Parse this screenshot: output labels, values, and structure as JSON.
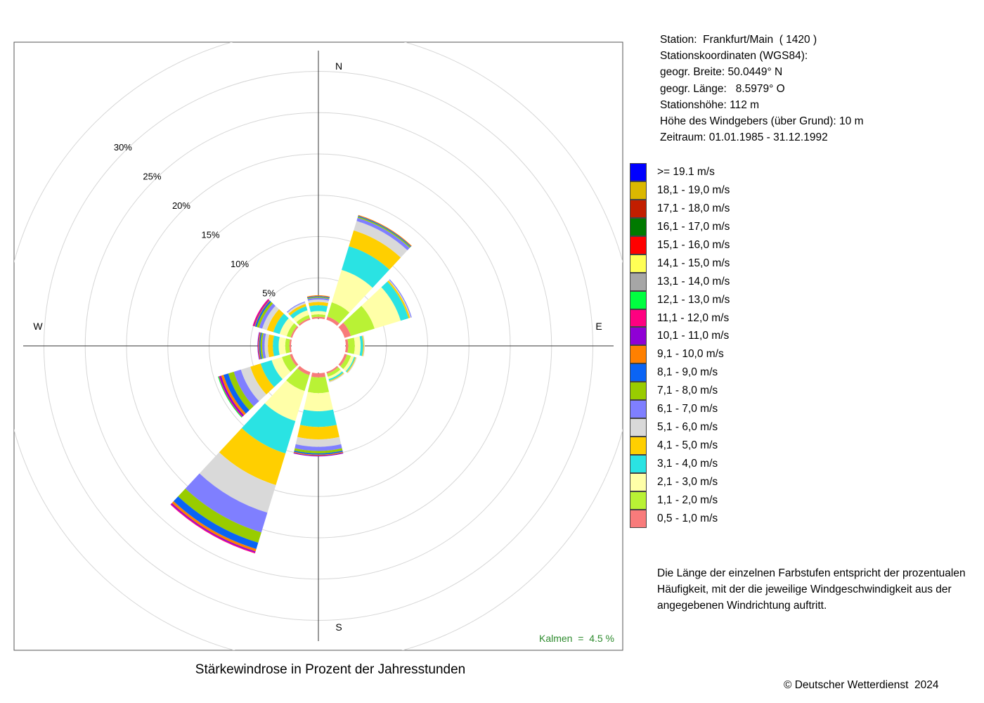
{
  "station_info": [
    "Station:  Frankfurt/Main  ( 1420 )",
    "Stationskoordinaten (WGS84):",
    "geogr. Breite: 50.0449° N",
    "geogr. Länge:   8.5979° O",
    "Stationshöhe: 112 m",
    "Höhe des Windgebers (über Grund): 10 m",
    "Zeitraum: 01.01.1985 - 31.12.1992"
  ],
  "note_lines": [
    "Die Länge der einzelnen Farbstufen entspricht der prozentualen",
    "Häufigkeit, mit der die jeweilige Windgeschwindigkeit aus der",
    "angegebenen Windrichtung auftritt."
  ],
  "copyright": "© Deutscher Wetterdienst  2024",
  "chart_data": {
    "type": "windrose",
    "title": "Stärkewindrose in Prozent der Jahresstunden",
    "compass": {
      "N": "N",
      "E": "E",
      "S": "S",
      "W": "W"
    },
    "radial_ticks": [
      "5%",
      "10%",
      "15%",
      "20%",
      "25%",
      "30%"
    ],
    "radial_values": [
      5,
      10,
      15,
      20,
      25,
      30
    ],
    "calm_label": "Kalmen  =  4.5 %",
    "calm_percent": 4.5,
    "grid": true,
    "legend_position": "right",
    "speed_classes": [
      {
        "label": "0,5 - 1,0 m/s",
        "color": "#f87b7b"
      },
      {
        "label": "1,1 - 2,0 m/s",
        "color": "#b9f235"
      },
      {
        "label": "2,1 - 3,0 m/s",
        "color": "#ffffa8"
      },
      {
        "label": "3,1 - 4,0 m/s",
        "color": "#2ae3e3"
      },
      {
        "label": "4,1 - 5,0 m/s",
        "color": "#ffcf00"
      },
      {
        "label": "5,1 - 6,0 m/s",
        "color": "#d9d9d9"
      },
      {
        "label": "6,1 - 7,0 m/s",
        "color": "#7f7fff"
      },
      {
        "label": "7,1 - 8,0 m/s",
        "color": "#99cc00"
      },
      {
        "label": "8,1 - 9,0 m/s",
        "color": "#0a64f5"
      },
      {
        "label": "9,1 - 10,0 m/s",
        "color": "#ff8000"
      },
      {
        "label": "10,1 - 11,0 m/s",
        "color": "#8f00d6"
      },
      {
        "label": "11,1 - 12,0 m/s",
        "color": "#ff0080"
      },
      {
        "label": "12,1 - 13,0 m/s",
        "color": "#00ff40"
      },
      {
        "label": "13,1 - 14,0 m/s",
        "color": "#a6a6a6"
      },
      {
        "label": "14,1 - 15,0 m/s",
        "color": "#ffff55"
      },
      {
        "label": "15,1 - 16,0 m/s",
        "color": "#ff0000"
      },
      {
        "label": "16,1 - 17,0 m/s",
        "color": "#007a00"
      },
      {
        "label": "17,1 - 18,0 m/s",
        "color": "#c21e00"
      },
      {
        "label": "18,1 - 19,0 m/s",
        "color": "#dbb800"
      },
      {
        "label": ">= 19.1 m/s",
        "color": "#0000ff"
      }
    ],
    "directions": [
      {
        "dir_deg": 0,
        "values": [
          0.2,
          0.3,
          0.4,
          0.7,
          0.4,
          0.3,
          0.2,
          0.1,
          0.05,
          0.05
        ]
      },
      {
        "dir_deg": 30,
        "values": [
          0.4,
          1.8,
          4.1,
          3.0,
          2.0,
          1.2,
          0.4,
          0.15,
          0.1,
          0.05
        ]
      },
      {
        "dir_deg": 60,
        "values": [
          0.8,
          3.0,
          3.3,
          1.0,
          0.2,
          0.1,
          0.05
        ]
      },
      {
        "dir_deg": 90,
        "values": [
          0.3,
          0.8,
          0.7,
          0.3,
          0.1,
          0.05
        ]
      },
      {
        "dir_deg": 120,
        "values": [
          0.3,
          0.5,
          0.4,
          0.15,
          0.1,
          0.05
        ]
      },
      {
        "dir_deg": 150,
        "values": [
          0.2,
          0.4,
          0.3,
          0.2,
          0.1,
          0.05
        ]
      },
      {
        "dir_deg": 180,
        "values": [
          0.5,
          1.9,
          2.2,
          1.9,
          1.5,
          0.9,
          0.5,
          0.3,
          0.15,
          0.1,
          0.05
        ]
      },
      {
        "dir_deg": 210,
        "values": [
          0.4,
          2.0,
          3.8,
          4.1,
          4.0,
          3.5,
          2.5,
          1.3,
          0.8,
          0.3,
          0.15,
          0.05
        ]
      },
      {
        "dir_deg": 240,
        "values": [
          0.3,
          1.0,
          1.3,
          1.4,
          1.3,
          1.2,
          0.9,
          0.7,
          0.6,
          0.3,
          0.2,
          0.1,
          0.05
        ]
      },
      {
        "dir_deg": 270,
        "values": [
          0.2,
          0.5,
          0.8,
          0.7,
          0.6,
          0.4,
          0.3,
          0.2,
          0.15,
          0.1,
          0.05
        ]
      },
      {
        "dir_deg": 300,
        "values": [
          0.2,
          0.5,
          0.9,
          0.8,
          0.8,
          0.6,
          0.4,
          0.3,
          0.2,
          0.1,
          0.05,
          0.05
        ]
      },
      {
        "dir_deg": 330,
        "values": [
          0.2,
          0.4,
          0.6,
          0.5,
          0.3,
          0.2,
          0.1
        ]
      }
    ]
  }
}
